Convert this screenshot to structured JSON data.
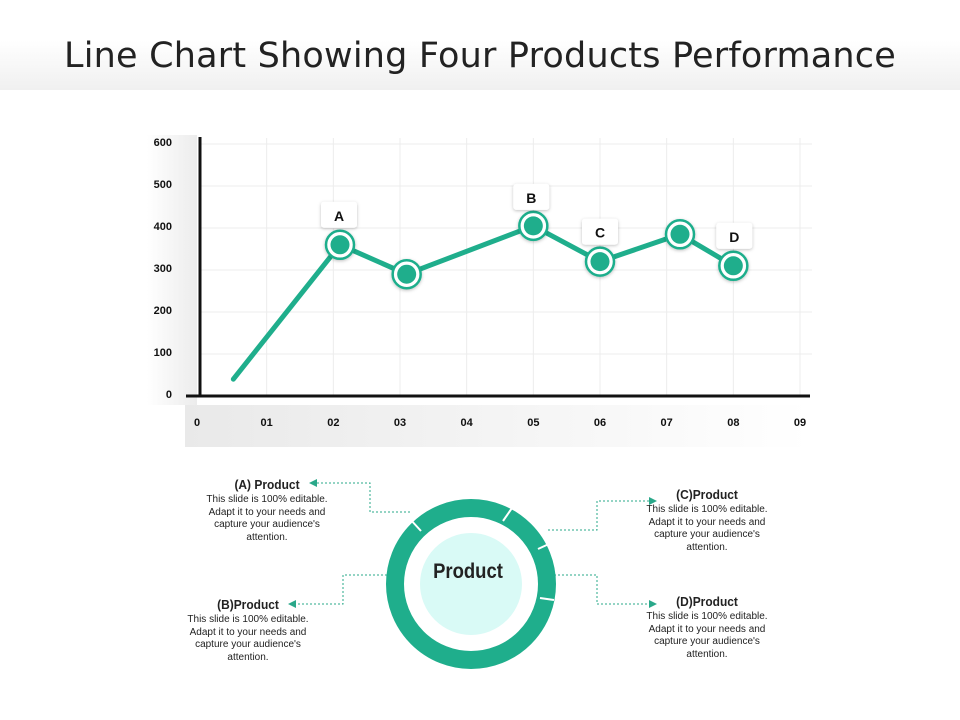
{
  "slide": {
    "title": "Line Chart Showing Four Products Performance",
    "accent_color": "#1fae8c",
    "ring_fill_color": "#d9faf6"
  },
  "chart_data": {
    "type": "line",
    "title": "Line Chart Showing Four Products Performance",
    "x_ticks": [
      "0",
      "01",
      "02",
      "03",
      "04",
      "05",
      "06",
      "07",
      "08",
      "09"
    ],
    "y_ticks": [
      "0",
      "100",
      "200",
      "300",
      "400",
      "500",
      "600"
    ],
    "ylim": [
      0,
      600
    ],
    "xlim": [
      0,
      9
    ],
    "grid": true,
    "series": [
      {
        "name": "Performance",
        "x": [
          0.5,
          2.1,
          3.1,
          5.0,
          6.0,
          7.2,
          8.0
        ],
        "y": [
          40,
          360,
          290,
          405,
          320,
          385,
          310
        ],
        "markers": [
          false,
          true,
          true,
          true,
          true,
          true,
          true
        ]
      }
    ],
    "point_labels": [
      {
        "text": "A",
        "x": 2.1,
        "y": 360
      },
      {
        "text": "B",
        "x": 5.0,
        "y": 405
      },
      {
        "text": "C",
        "x": 6.0,
        "y": 320
      },
      {
        "text": "D",
        "x": 8.0,
        "y": 310
      }
    ]
  },
  "diagram": {
    "center_label": "Product",
    "items": [
      {
        "title": "(A) Product",
        "text": "This slide is 100% editable. Adapt it to your needs and capture your audience's attention."
      },
      {
        "title": "(B)Product",
        "text": "This slide is 100% editable. Adapt it to your needs and capture your audience's attention."
      },
      {
        "title": "(C)Product",
        "text": "This slide is 100% editable. Adapt it to your needs and capture your audience's attention."
      },
      {
        "title": "(D)Product",
        "text": "This slide is 100% editable. Adapt it to your needs and capture your audience's attention."
      }
    ]
  }
}
